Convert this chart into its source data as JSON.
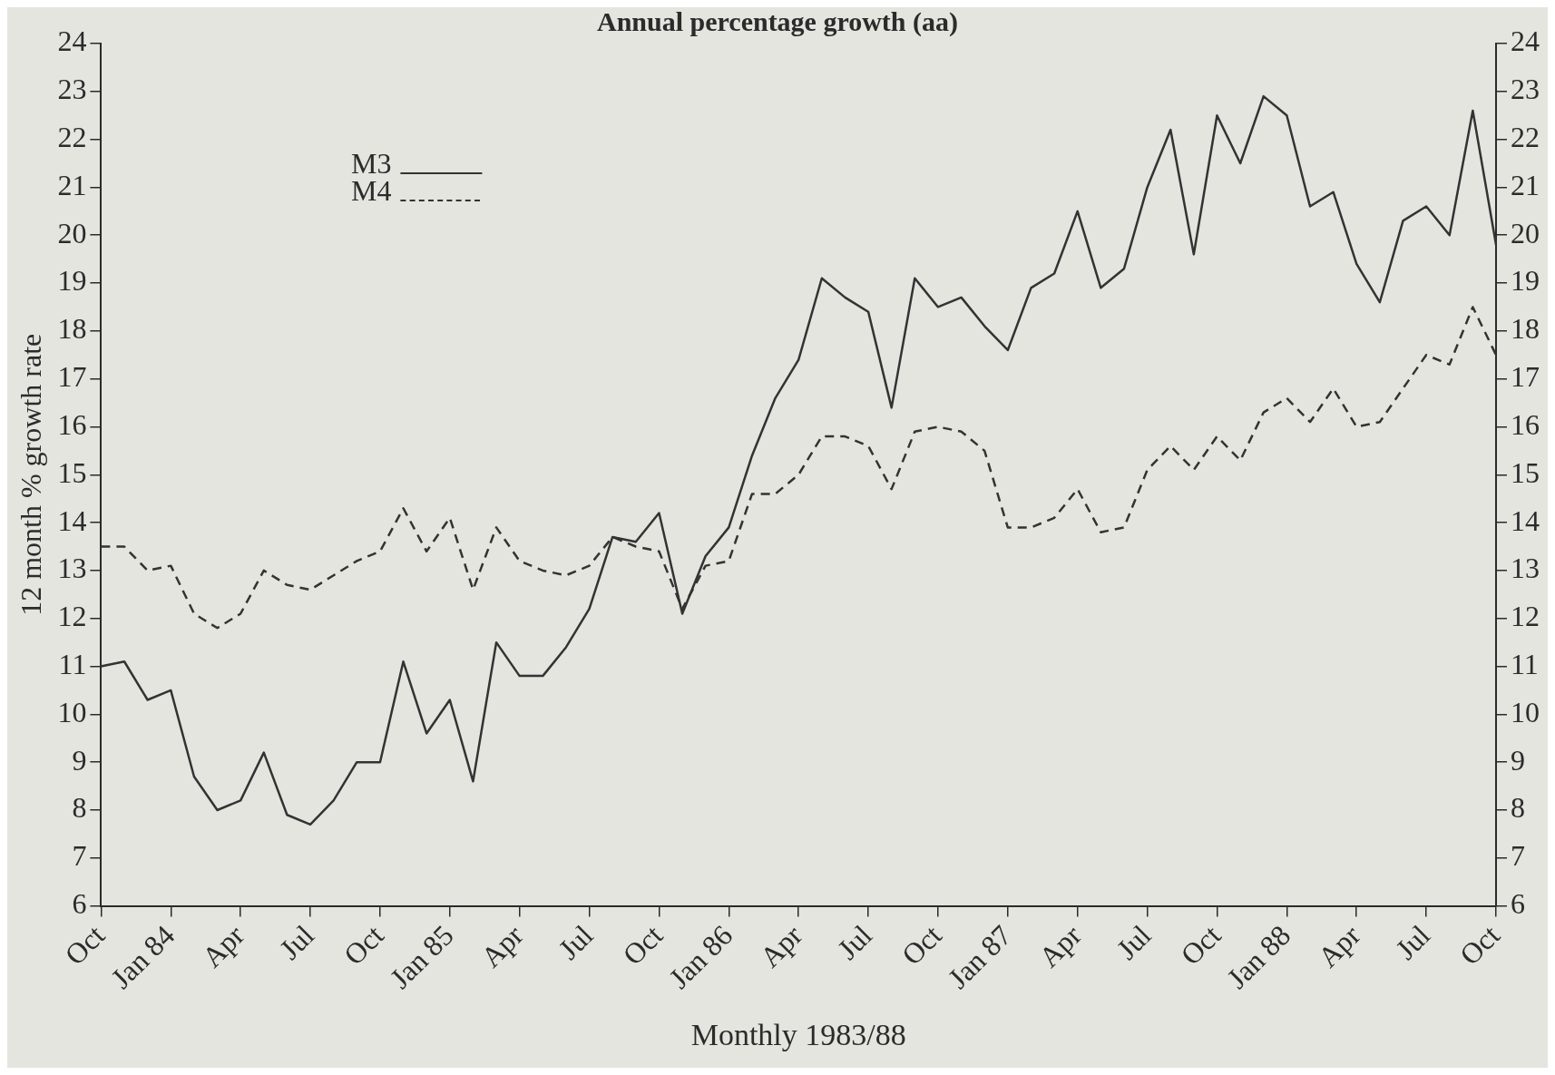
{
  "chart_data": {
    "type": "line",
    "title": "Annual percentage growth (aa)",
    "xlabel": "Monthly 1983/88",
    "ylabel": "12 month % growth rate",
    "categories": [
      "Oct",
      null,
      null,
      "Jan 84",
      null,
      null,
      "Apr",
      null,
      null,
      "Jul",
      null,
      null,
      "Oct",
      null,
      null,
      "Jan 85",
      null,
      null,
      "Apr",
      null,
      null,
      "Jul",
      null,
      null,
      "Oct",
      null,
      null,
      "Jan 86",
      null,
      null,
      "Apr",
      null,
      null,
      "Jul",
      null,
      null,
      "Oct",
      null,
      null,
      "Jan 87",
      null,
      null,
      "Apr",
      null,
      null,
      "Jul",
      null,
      null,
      "Oct",
      null,
      null,
      "Jan 88",
      null,
      null,
      "Apr",
      null,
      null,
      "Jul",
      null,
      null,
      "Oct"
    ],
    "series": [
      {
        "name": "M3",
        "color": "#333333",
        "line_style": "solid",
        "values": [
          11.0,
          11.1,
          10.3,
          10.5,
          8.7,
          8.0,
          8.2,
          9.2,
          7.9,
          7.7,
          8.2,
          9.0,
          9.0,
          11.1,
          9.6,
          10.3,
          8.6,
          11.5,
          10.8,
          10.8,
          11.4,
          12.2,
          13.7,
          13.6,
          14.2,
          12.1,
          13.3,
          13.9,
          15.4,
          16.6,
          17.4,
          19.1,
          18.7,
          18.4,
          16.4,
          19.1,
          18.5,
          18.7,
          18.1,
          17.6,
          18.9,
          19.2,
          20.5,
          18.9,
          19.3,
          21.0,
          22.2,
          19.6,
          22.5,
          21.5,
          22.9,
          22.5,
          20.6,
          20.9,
          19.4,
          18.6,
          20.3,
          20.6,
          20.0,
          22.6,
          19.8
        ]
      },
      {
        "name": "M4",
        "color": "#333333",
        "line_style": "dashed",
        "values": [
          13.5,
          13.5,
          13.0,
          13.1,
          12.1,
          11.8,
          12.1,
          13.0,
          12.7,
          12.6,
          12.9,
          13.2,
          13.4,
          14.3,
          13.4,
          14.1,
          12.6,
          13.9,
          13.2,
          13.0,
          12.9,
          13.1,
          13.7,
          13.5,
          13.4,
          12.2,
          13.1,
          13.2,
          14.6,
          14.6,
          15.0,
          15.8,
          15.8,
          15.6,
          14.7,
          15.9,
          16.0,
          15.9,
          15.5,
          13.9,
          13.9,
          14.1,
          14.7,
          13.8,
          13.9,
          15.1,
          15.6,
          15.1,
          15.8,
          15.3,
          16.3,
          16.6,
          16.1,
          16.8,
          16.0,
          16.1,
          16.8,
          17.5,
          17.3,
          18.5,
          17.5
        ]
      }
    ],
    "ylim": [
      6,
      24
    ],
    "yticks": [
      6,
      7,
      8,
      9,
      10,
      11,
      12,
      13,
      14,
      15,
      16,
      17,
      18,
      19,
      20,
      21,
      22,
      23,
      24
    ],
    "y2lim": [
      6,
      24
    ],
    "y2ticks": [
      6,
      7,
      8,
      9,
      10,
      11,
      12,
      13,
      14,
      15,
      16,
      17,
      18,
      19,
      20,
      21,
      22,
      23,
      24
    ],
    "grid": false,
    "legend": "top left",
    "marker": "none"
  }
}
